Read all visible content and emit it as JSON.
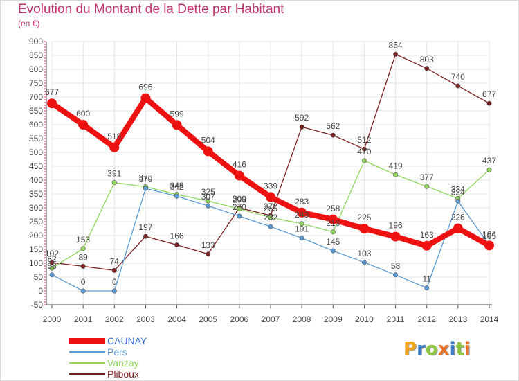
{
  "title": "Evolution du Montant de la Dette par Habitant",
  "unit": "(en €)",
  "logo": {
    "letters": [
      {
        "ch": "P",
        "color": "#f2a61a"
      },
      {
        "ch": "r",
        "color": "#3d7ec6"
      },
      {
        "ch": "o",
        "color": "#8cc63f"
      },
      {
        "ch": "x",
        "color": "#e8752a"
      },
      {
        "ch": "i",
        "color": "#3d7ec6"
      },
      {
        "ch": "t",
        "color": "#8cc63f"
      },
      {
        "ch": "i",
        "color": "#e8752a"
      }
    ]
  },
  "chart_data": {
    "type": "line",
    "title": "Evolution du Montant de la Dette par Habitant",
    "ylabel": "(en €)",
    "ylim": [
      -50,
      900
    ],
    "yticks": [
      -50,
      0,
      50,
      100,
      150,
      200,
      250,
      300,
      350,
      400,
      450,
      500,
      550,
      600,
      650,
      700,
      750,
      800,
      850,
      900
    ],
    "x": [
      2000,
      2001,
      2002,
      2003,
      2004,
      2005,
      2006,
      2007,
      2008,
      2009,
      2010,
      2011,
      2012,
      2013,
      2014
    ],
    "grid": true,
    "legend_position": "bottom-left",
    "series": [
      {
        "name": "CAUNAY",
        "color": "#ee1111",
        "values": [
          677,
          600,
          518,
          696,
          599,
          504,
          416,
          339,
          283,
          258,
          225,
          196,
          163,
          226,
          164
        ]
      },
      {
        "name": "Pers",
        "color": "#5b9bd5",
        "values": [
          58,
          0,
          0,
          370,
          342,
          307,
          270,
          232,
          191,
          145,
          103,
          58,
          11,
          324,
          165
        ]
      },
      {
        "name": "Vanzay",
        "color": "#8fd55b",
        "values": [
          82,
          153,
          391,
          376,
          348,
          325,
          296,
          265,
          243,
          213,
          470,
          419,
          377,
          334,
          437
        ]
      },
      {
        "name": "Pliboux",
        "color": "#7a1f1f",
        "values": [
          102,
          89,
          74,
          197,
          166,
          133,
          300,
          272,
          592,
          562,
          512,
          854,
          803,
          740,
          677
        ]
      }
    ]
  }
}
